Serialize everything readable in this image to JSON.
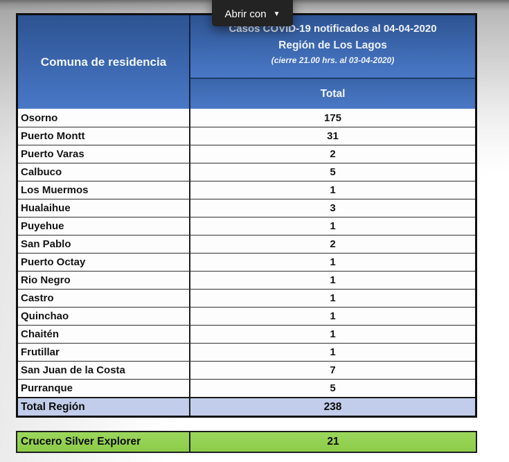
{
  "viewer": {
    "open_with_label": "Abrir con",
    "caret_icon": "▼"
  },
  "table": {
    "header": {
      "comuna_label": "Comuna de residencia",
      "title_line1": "Casos COVID-19 notificados al 04-04-2020",
      "title_line2": "Región de Los Lagos",
      "title_line3": "(cierre 21.00 hrs. al 03-04-2020)",
      "total_label": "Total"
    },
    "rows": [
      {
        "label": "Osorno",
        "value": "175"
      },
      {
        "label": "Puerto Montt",
        "value": "31"
      },
      {
        "label": "Puerto Varas",
        "value": "2"
      },
      {
        "label": "Calbuco",
        "value": "5"
      },
      {
        "label": "Los Muermos",
        "value": "1"
      },
      {
        "label": "Hualaihue",
        "value": "3"
      },
      {
        "label": "Puyehue",
        "value": "1"
      },
      {
        "label": "San Pablo",
        "value": "2"
      },
      {
        "label": "Puerto Octay",
        "value": "1"
      },
      {
        "label": "Rio Negro",
        "value": "1"
      },
      {
        "label": "Castro",
        "value": "1"
      },
      {
        "label": "Quinchao",
        "value": "1"
      },
      {
        "label": "Chaitén",
        "value": "1"
      },
      {
        "label": "Frutillar",
        "value": "1"
      },
      {
        "label": "San Juan de la Costa",
        "value": "7"
      },
      {
        "label": "Purranque",
        "value": "5"
      }
    ],
    "total_row": {
      "label": "Total Región",
      "value": "238"
    }
  },
  "cruise_row": {
    "label": "Crucero Silver Explorer",
    "value": "21"
  },
  "colors": {
    "header_blue_top": "#2d5391",
    "header_blue_bottom": "#4a78c6",
    "total_row_blue": "#c1cdea",
    "cruise_green": "#92d050",
    "button_dark": "#232323"
  }
}
